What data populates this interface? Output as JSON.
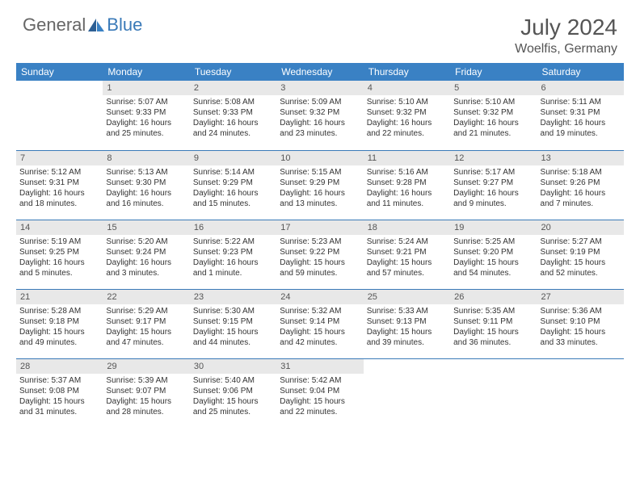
{
  "logo": {
    "part1": "General",
    "part2": "Blue"
  },
  "title": {
    "month": "July 2024",
    "location": "Woelfis, Germany"
  },
  "colors": {
    "header_bg": "#3a81c4",
    "header_text": "#ffffff",
    "daynum_bg": "#e8e8e8",
    "border": "#3a7ab8",
    "logo_gray": "#666666",
    "logo_blue": "#3a7ab8"
  },
  "weekdays": [
    "Sunday",
    "Monday",
    "Tuesday",
    "Wednesday",
    "Thursday",
    "Friday",
    "Saturday"
  ],
  "weeks": [
    [
      null,
      {
        "n": "1",
        "sr": "Sunrise: 5:07 AM",
        "ss": "Sunset: 9:33 PM",
        "dl1": "Daylight: 16 hours",
        "dl2": "and 25 minutes."
      },
      {
        "n": "2",
        "sr": "Sunrise: 5:08 AM",
        "ss": "Sunset: 9:33 PM",
        "dl1": "Daylight: 16 hours",
        "dl2": "and 24 minutes."
      },
      {
        "n": "3",
        "sr": "Sunrise: 5:09 AM",
        "ss": "Sunset: 9:32 PM",
        "dl1": "Daylight: 16 hours",
        "dl2": "and 23 minutes."
      },
      {
        "n": "4",
        "sr": "Sunrise: 5:10 AM",
        "ss": "Sunset: 9:32 PM",
        "dl1": "Daylight: 16 hours",
        "dl2": "and 22 minutes."
      },
      {
        "n": "5",
        "sr": "Sunrise: 5:10 AM",
        "ss": "Sunset: 9:32 PM",
        "dl1": "Daylight: 16 hours",
        "dl2": "and 21 minutes."
      },
      {
        "n": "6",
        "sr": "Sunrise: 5:11 AM",
        "ss": "Sunset: 9:31 PM",
        "dl1": "Daylight: 16 hours",
        "dl2": "and 19 minutes."
      }
    ],
    [
      {
        "n": "7",
        "sr": "Sunrise: 5:12 AM",
        "ss": "Sunset: 9:31 PM",
        "dl1": "Daylight: 16 hours",
        "dl2": "and 18 minutes."
      },
      {
        "n": "8",
        "sr": "Sunrise: 5:13 AM",
        "ss": "Sunset: 9:30 PM",
        "dl1": "Daylight: 16 hours",
        "dl2": "and 16 minutes."
      },
      {
        "n": "9",
        "sr": "Sunrise: 5:14 AM",
        "ss": "Sunset: 9:29 PM",
        "dl1": "Daylight: 16 hours",
        "dl2": "and 15 minutes."
      },
      {
        "n": "10",
        "sr": "Sunrise: 5:15 AM",
        "ss": "Sunset: 9:29 PM",
        "dl1": "Daylight: 16 hours",
        "dl2": "and 13 minutes."
      },
      {
        "n": "11",
        "sr": "Sunrise: 5:16 AM",
        "ss": "Sunset: 9:28 PM",
        "dl1": "Daylight: 16 hours",
        "dl2": "and 11 minutes."
      },
      {
        "n": "12",
        "sr": "Sunrise: 5:17 AM",
        "ss": "Sunset: 9:27 PM",
        "dl1": "Daylight: 16 hours",
        "dl2": "and 9 minutes."
      },
      {
        "n": "13",
        "sr": "Sunrise: 5:18 AM",
        "ss": "Sunset: 9:26 PM",
        "dl1": "Daylight: 16 hours",
        "dl2": "and 7 minutes."
      }
    ],
    [
      {
        "n": "14",
        "sr": "Sunrise: 5:19 AM",
        "ss": "Sunset: 9:25 PM",
        "dl1": "Daylight: 16 hours",
        "dl2": "and 5 minutes."
      },
      {
        "n": "15",
        "sr": "Sunrise: 5:20 AM",
        "ss": "Sunset: 9:24 PM",
        "dl1": "Daylight: 16 hours",
        "dl2": "and 3 minutes."
      },
      {
        "n": "16",
        "sr": "Sunrise: 5:22 AM",
        "ss": "Sunset: 9:23 PM",
        "dl1": "Daylight: 16 hours",
        "dl2": "and 1 minute."
      },
      {
        "n": "17",
        "sr": "Sunrise: 5:23 AM",
        "ss": "Sunset: 9:22 PM",
        "dl1": "Daylight: 15 hours",
        "dl2": "and 59 minutes."
      },
      {
        "n": "18",
        "sr": "Sunrise: 5:24 AM",
        "ss": "Sunset: 9:21 PM",
        "dl1": "Daylight: 15 hours",
        "dl2": "and 57 minutes."
      },
      {
        "n": "19",
        "sr": "Sunrise: 5:25 AM",
        "ss": "Sunset: 9:20 PM",
        "dl1": "Daylight: 15 hours",
        "dl2": "and 54 minutes."
      },
      {
        "n": "20",
        "sr": "Sunrise: 5:27 AM",
        "ss": "Sunset: 9:19 PM",
        "dl1": "Daylight: 15 hours",
        "dl2": "and 52 minutes."
      }
    ],
    [
      {
        "n": "21",
        "sr": "Sunrise: 5:28 AM",
        "ss": "Sunset: 9:18 PM",
        "dl1": "Daylight: 15 hours",
        "dl2": "and 49 minutes."
      },
      {
        "n": "22",
        "sr": "Sunrise: 5:29 AM",
        "ss": "Sunset: 9:17 PM",
        "dl1": "Daylight: 15 hours",
        "dl2": "and 47 minutes."
      },
      {
        "n": "23",
        "sr": "Sunrise: 5:30 AM",
        "ss": "Sunset: 9:15 PM",
        "dl1": "Daylight: 15 hours",
        "dl2": "and 44 minutes."
      },
      {
        "n": "24",
        "sr": "Sunrise: 5:32 AM",
        "ss": "Sunset: 9:14 PM",
        "dl1": "Daylight: 15 hours",
        "dl2": "and 42 minutes."
      },
      {
        "n": "25",
        "sr": "Sunrise: 5:33 AM",
        "ss": "Sunset: 9:13 PM",
        "dl1": "Daylight: 15 hours",
        "dl2": "and 39 minutes."
      },
      {
        "n": "26",
        "sr": "Sunrise: 5:35 AM",
        "ss": "Sunset: 9:11 PM",
        "dl1": "Daylight: 15 hours",
        "dl2": "and 36 minutes."
      },
      {
        "n": "27",
        "sr": "Sunrise: 5:36 AM",
        "ss": "Sunset: 9:10 PM",
        "dl1": "Daylight: 15 hours",
        "dl2": "and 33 minutes."
      }
    ],
    [
      {
        "n": "28",
        "sr": "Sunrise: 5:37 AM",
        "ss": "Sunset: 9:08 PM",
        "dl1": "Daylight: 15 hours",
        "dl2": "and 31 minutes."
      },
      {
        "n": "29",
        "sr": "Sunrise: 5:39 AM",
        "ss": "Sunset: 9:07 PM",
        "dl1": "Daylight: 15 hours",
        "dl2": "and 28 minutes."
      },
      {
        "n": "30",
        "sr": "Sunrise: 5:40 AM",
        "ss": "Sunset: 9:06 PM",
        "dl1": "Daylight: 15 hours",
        "dl2": "and 25 minutes."
      },
      {
        "n": "31",
        "sr": "Sunrise: 5:42 AM",
        "ss": "Sunset: 9:04 PM",
        "dl1": "Daylight: 15 hours",
        "dl2": "and 22 minutes."
      },
      null,
      null,
      null
    ]
  ]
}
